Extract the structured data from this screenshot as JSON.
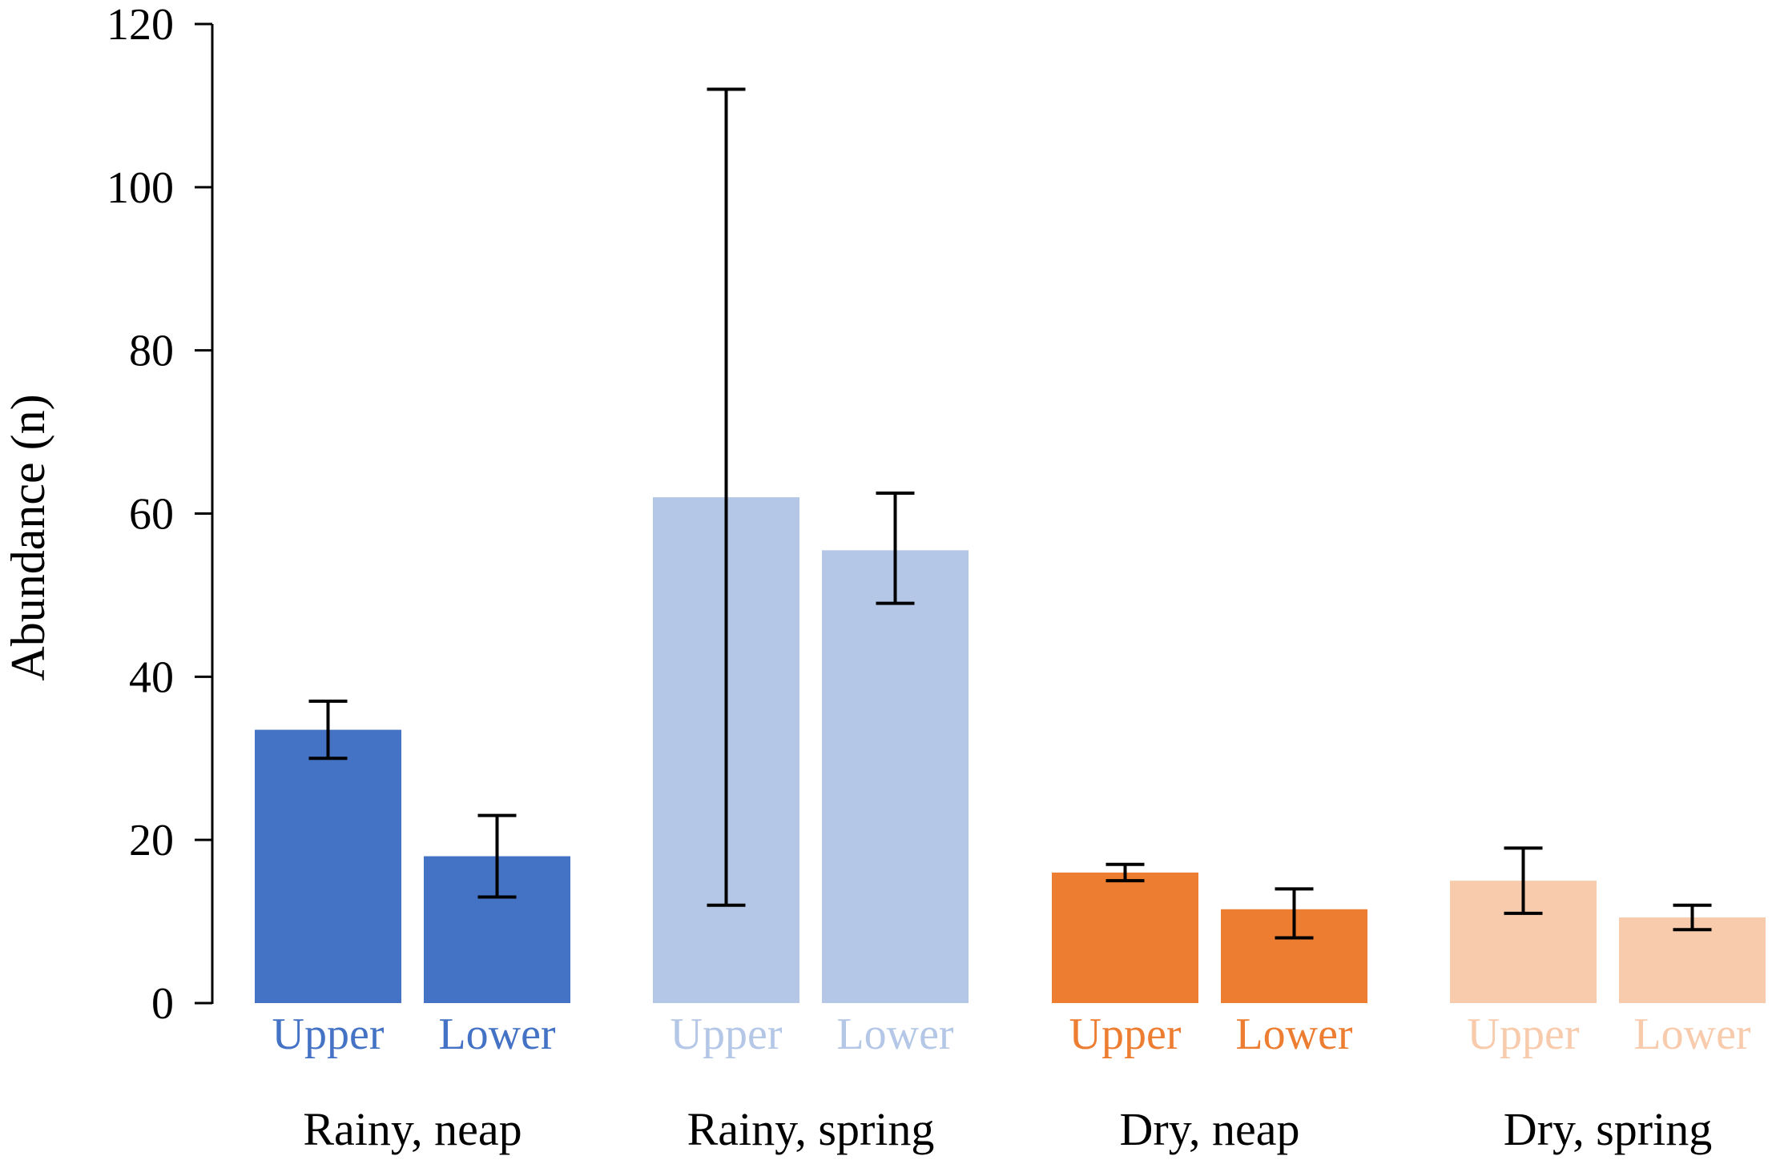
{
  "chart_data": {
    "type": "bar",
    "ylabel": "Abundance (n)",
    "ylim": [
      0,
      120
    ],
    "yticks": [
      0,
      20,
      40,
      60,
      80,
      100,
      120
    ],
    "yticklabels": [
      "0",
      "20",
      "40",
      "60",
      "80",
      "100",
      "120"
    ],
    "grid": false,
    "legend": "none",
    "groups": [
      {
        "label": "Rainy, neap",
        "color": "#4472C4",
        "bars": [
          {
            "label": "Upper",
            "value": 33.5,
            "err_low": 30.0,
            "err_high": 37.0
          },
          {
            "label": "Lower",
            "value": 18.0,
            "err_low": 13.0,
            "err_high": 23.0
          }
        ]
      },
      {
        "label": "Rainy, spring",
        "color": "#B4C7E7",
        "bars": [
          {
            "label": "Upper",
            "value": 62.0,
            "err_low": 12.0,
            "err_high": 112.0
          },
          {
            "label": "Lower",
            "value": 55.5,
            "err_low": 49.0,
            "err_high": 62.5
          }
        ]
      },
      {
        "label": "Dry, neap",
        "color": "#ED7D31",
        "bars": [
          {
            "label": "Upper",
            "value": 16.0,
            "err_low": 15.0,
            "err_high": 17.0
          },
          {
            "label": "Lower",
            "value": 11.5,
            "err_low": 8.0,
            "err_high": 14.0
          }
        ]
      },
      {
        "label": "Dry, spring",
        "color": "#F8CBAD",
        "bars": [
          {
            "label": "Upper",
            "value": 15.0,
            "err_low": 11.0,
            "err_high": 19.0
          },
          {
            "label": "Lower",
            "value": 10.5,
            "err_low": 9.0,
            "err_high": 12.0
          }
        ]
      }
    ]
  }
}
